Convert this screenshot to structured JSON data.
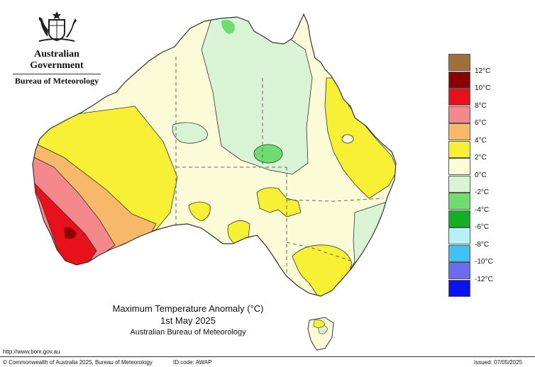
{
  "header": {
    "government": "Australian Government",
    "bureau": "Bureau of Meteorology"
  },
  "map": {
    "title": "Maximum Temperature Anomaly (°C)",
    "date": "1st May 2025",
    "source": "Australian Bureau of Meteorology",
    "url": "http://www.bom.gov.au"
  },
  "legend": [
    {
      "label": "",
      "color": "#a0703a"
    },
    {
      "label": "12°C",
      "color": "#8b0000"
    },
    {
      "label": "10°C",
      "color": "#e8101a"
    },
    {
      "label": "8°C",
      "color": "#f4888c"
    },
    {
      "label": "6°C",
      "color": "#f7b86a"
    },
    {
      "label": "4°C",
      "color": "#f8f035"
    },
    {
      "label": "2°C",
      "color": "#fbfbd8"
    },
    {
      "label": "0°C",
      "color": "#d9f4d4"
    },
    {
      "label": "-2°C",
      "color": "#6fdc6f"
    },
    {
      "label": "-4°C",
      "color": "#13b023"
    },
    {
      "label": "-6°C",
      "color": "#b4f2f6"
    },
    {
      "label": "-8°C",
      "color": "#3fc3f2"
    },
    {
      "label": "-10°C",
      "color": "#6b6bf0"
    },
    {
      "label": "-12°C",
      "color": "#0c12f4"
    }
  ],
  "colors": {
    "land_base": "#fbfbd8",
    "cool": "#d9f4d4",
    "cooler": "#6fdc6f",
    "warm": "#f8f035",
    "warmer": "#f7b86a",
    "hot": "#f4888c",
    "hotter": "#e8101a"
  },
  "footer": {
    "copyright": "© Commonwealth of Australia 2025, Bureau of Meteorology",
    "id_code": "ID code: AWAP",
    "issued": "Issued: 07/05/2025"
  }
}
